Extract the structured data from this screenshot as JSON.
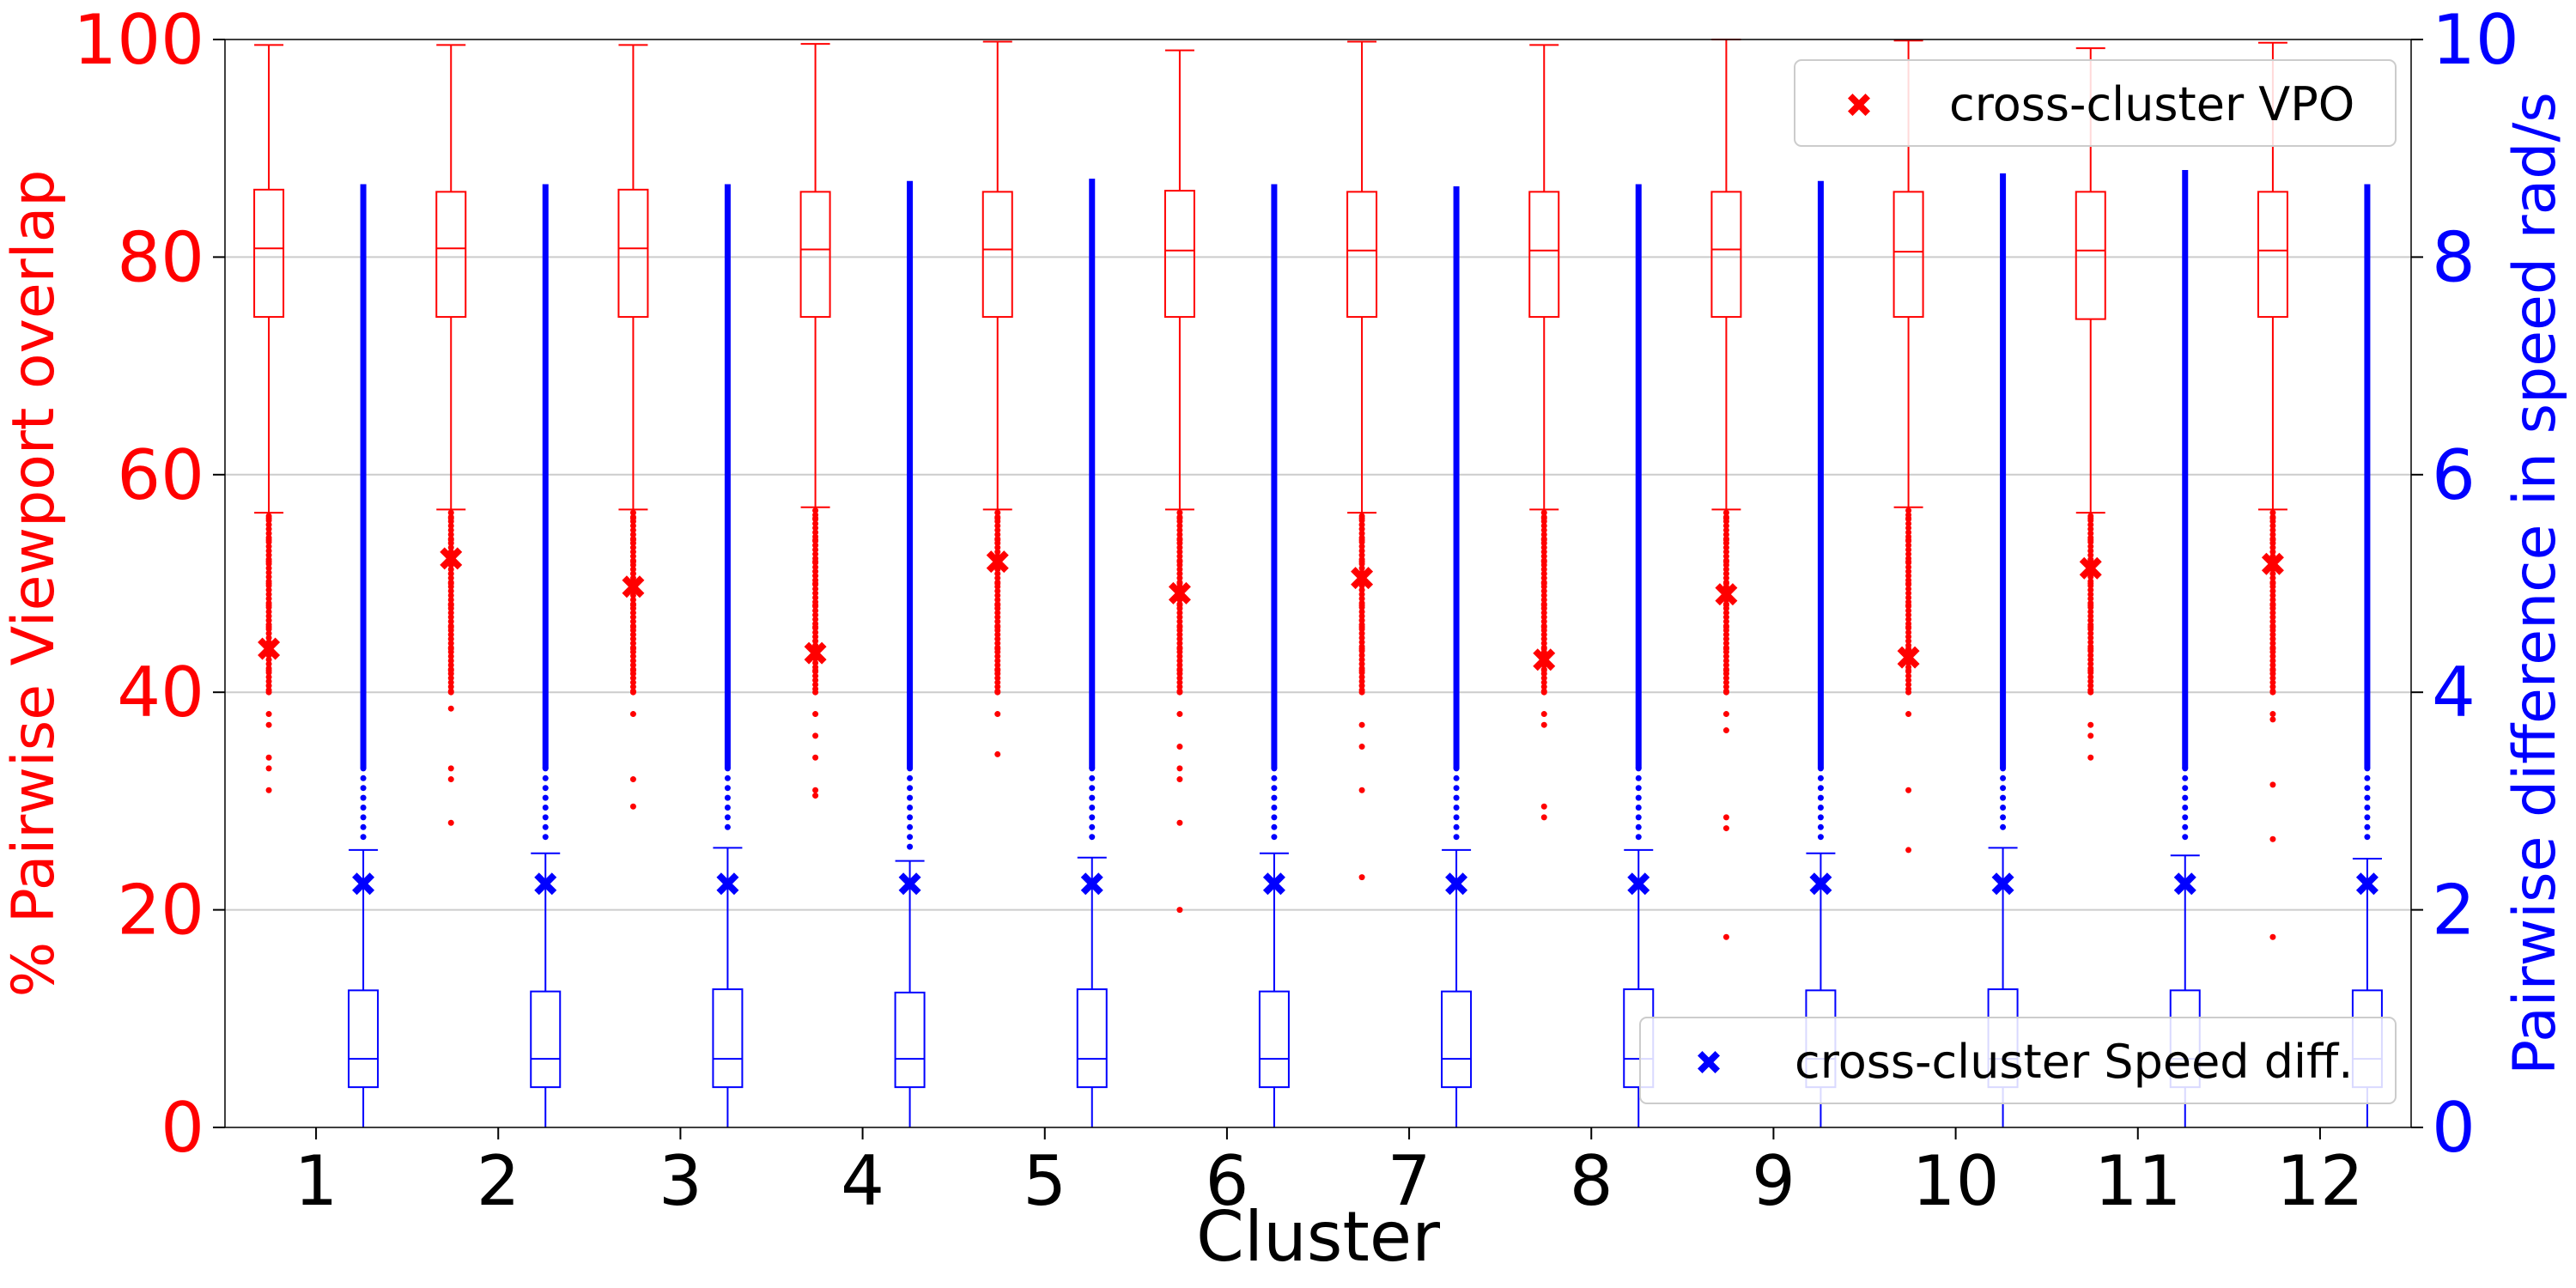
{
  "chart_data": {
    "type": "box",
    "xlabel": "Cluster",
    "ylabel_left": "% Pairwise Viewport overlap",
    "ylabel_right": "Pairwise difference in speed rad/s",
    "categories": [
      "1",
      "2",
      "3",
      "4",
      "5",
      "6",
      "7",
      "8",
      "9",
      "10",
      "11",
      "12"
    ],
    "ylim_left": [
      0,
      100
    ],
    "ylim_right": [
      0,
      10
    ],
    "yticks_left": [
      "0",
      "20",
      "40",
      "60",
      "80",
      "100"
    ],
    "yticks_right": [
      "0",
      "2",
      "4",
      "6",
      "8",
      "10"
    ],
    "grid": "horizontal",
    "colors": {
      "vpo": "#ff0000",
      "speed": "#0000ff"
    },
    "vpo_boxes": [
      {
        "min": 56.5,
        "q1": 74.5,
        "median": 80.8,
        "q3": 86.2,
        "max": 99.5,
        "outliers": [
          56,
          54,
          52,
          50,
          48,
          46,
          44,
          42,
          40,
          38,
          37,
          34,
          33,
          31
        ],
        "cross_cluster": 44.0
      },
      {
        "min": 56.8,
        "q1": 74.5,
        "median": 80.8,
        "q3": 86.0,
        "max": 99.5,
        "outliers": [
          56,
          54,
          52,
          50,
          48,
          46,
          44,
          42,
          40,
          38.5,
          33,
          32,
          28
        ],
        "cross_cluster": 52.3
      },
      {
        "min": 56.8,
        "q1": 74.5,
        "median": 80.8,
        "q3": 86.2,
        "max": 99.5,
        "outliers": [
          56,
          54,
          52,
          50,
          48,
          46,
          44,
          42,
          40,
          38,
          32,
          29.5
        ],
        "cross_cluster": 49.7
      },
      {
        "min": 57.0,
        "q1": 74.5,
        "median": 80.7,
        "q3": 86.0,
        "max": 99.6,
        "outliers": [
          56,
          54,
          52,
          50,
          48,
          46,
          44,
          42,
          40,
          38,
          36,
          34,
          31,
          30.5
        ],
        "cross_cluster": 43.6
      },
      {
        "min": 56.8,
        "q1": 74.5,
        "median": 80.7,
        "q3": 86.0,
        "max": 99.8,
        "outliers": [
          56,
          54,
          52,
          50,
          48,
          46,
          44,
          42,
          40,
          38,
          34.3
        ],
        "cross_cluster": 52.0
      },
      {
        "min": 56.8,
        "q1": 74.5,
        "median": 80.6,
        "q3": 86.1,
        "max": 99.0,
        "outliers": [
          56,
          54,
          52,
          50,
          48,
          46,
          44,
          42,
          40,
          38,
          35,
          33,
          32,
          28,
          20
        ],
        "cross_cluster": 49.1
      },
      {
        "min": 56.5,
        "q1": 74.5,
        "median": 80.6,
        "q3": 86.0,
        "max": 99.8,
        "outliers": [
          56,
          54,
          52,
          50,
          48,
          46,
          44,
          42,
          40,
          37,
          35,
          31,
          23
        ],
        "cross_cluster": 50.5
      },
      {
        "min": 56.8,
        "q1": 74.5,
        "median": 80.6,
        "q3": 86.0,
        "max": 99.5,
        "outliers": [
          56,
          54,
          52,
          50,
          48,
          46,
          44,
          42,
          40,
          38,
          37,
          29.5,
          28.5
        ],
        "cross_cluster": 43.0
      },
      {
        "min": 56.8,
        "q1": 74.5,
        "median": 80.7,
        "q3": 86.0,
        "max": 100.0,
        "outliers": [
          56,
          54,
          52,
          50,
          48,
          46,
          44,
          42,
          40,
          38,
          36.5,
          28.5,
          27.5,
          17.5
        ],
        "cross_cluster": 49.0
      },
      {
        "min": 57.0,
        "q1": 74.5,
        "median": 80.5,
        "q3": 86.0,
        "max": 99.9,
        "outliers": [
          56,
          54,
          52,
          50,
          48,
          46,
          44,
          42,
          40,
          38,
          31,
          25.5
        ],
        "cross_cluster": 43.2
      },
      {
        "min": 56.5,
        "q1": 74.3,
        "median": 80.6,
        "q3": 86.0,
        "max": 99.2,
        "outliers": [
          56,
          54,
          52,
          50,
          48,
          46,
          44,
          42,
          40,
          37,
          36,
          34
        ],
        "cross_cluster": 51.4
      },
      {
        "min": 56.8,
        "q1": 74.5,
        "median": 80.6,
        "q3": 86.0,
        "max": 99.7,
        "outliers": [
          56,
          54,
          52,
          50,
          48,
          46,
          44,
          42,
          40,
          38,
          37.5,
          31.5,
          26.5,
          17.5
        ],
        "cross_cluster": 51.8
      }
    ],
    "speed_boxes": [
      {
        "min": 0.0,
        "q1": 0.37,
        "median": 0.63,
        "q3": 1.26,
        "max": 2.55,
        "outlier_max": 8.67,
        "cross_cluster": 2.24
      },
      {
        "min": 0.0,
        "q1": 0.37,
        "median": 0.63,
        "q3": 1.25,
        "max": 2.52,
        "outlier_max": 8.67,
        "cross_cluster": 2.24
      },
      {
        "min": 0.0,
        "q1": 0.37,
        "median": 0.63,
        "q3": 1.27,
        "max": 2.57,
        "outlier_max": 8.67,
        "cross_cluster": 2.24
      },
      {
        "min": 0.0,
        "q1": 0.37,
        "median": 0.63,
        "q3": 1.24,
        "max": 2.45,
        "outlier_max": 8.7,
        "cross_cluster": 2.24
      },
      {
        "min": 0.0,
        "q1": 0.37,
        "median": 0.63,
        "q3": 1.27,
        "max": 2.48,
        "outlier_max": 8.72,
        "cross_cluster": 2.24
      },
      {
        "min": 0.0,
        "q1": 0.37,
        "median": 0.63,
        "q3": 1.25,
        "max": 2.52,
        "outlier_max": 8.67,
        "cross_cluster": 2.24
      },
      {
        "min": 0.0,
        "q1": 0.37,
        "median": 0.63,
        "q3": 1.25,
        "max": 2.55,
        "outlier_max": 8.65,
        "cross_cluster": 2.24
      },
      {
        "min": 0.0,
        "q1": 0.37,
        "median": 0.63,
        "q3": 1.27,
        "max": 2.55,
        "outlier_max": 8.67,
        "cross_cluster": 2.24
      },
      {
        "min": 0.0,
        "q1": 0.37,
        "median": 0.63,
        "q3": 1.26,
        "max": 2.52,
        "outlier_max": 8.7,
        "cross_cluster": 2.24
      },
      {
        "min": 0.0,
        "q1": 0.37,
        "median": 0.63,
        "q3": 1.27,
        "max": 2.57,
        "outlier_max": 8.77,
        "cross_cluster": 2.24
      },
      {
        "min": 0.0,
        "q1": 0.37,
        "median": 0.63,
        "q3": 1.26,
        "max": 2.5,
        "outlier_max": 8.8,
        "cross_cluster": 2.24
      },
      {
        "min": 0.0,
        "q1": 0.37,
        "median": 0.63,
        "q3": 1.26,
        "max": 2.47,
        "outlier_max": 8.67,
        "cross_cluster": 2.24
      }
    ],
    "legend_vpo": {
      "label": "cross-cluster VPO",
      "placement": "top-right"
    },
    "legend_speed": {
      "label": "cross-cluster Speed diff.",
      "placement": "bottom-right"
    }
  }
}
